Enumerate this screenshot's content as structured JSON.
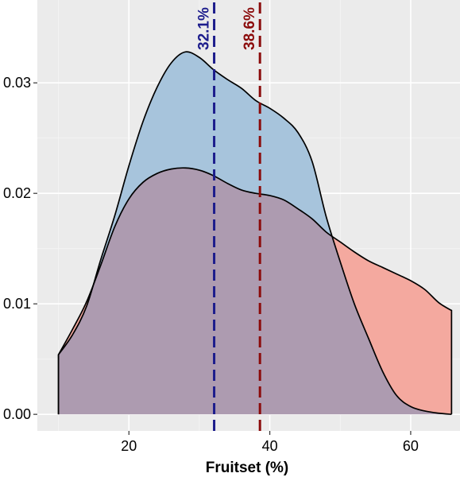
{
  "chart_data": {
    "type": "area",
    "title": "",
    "xlabel": "Fruitset (%)",
    "ylabel": "",
    "xlim": [
      7,
      67
    ],
    "ylim": [
      -0.0015,
      0.0375
    ],
    "x_ticks": [
      20,
      40,
      60
    ],
    "y_ticks": [
      0.0,
      0.01,
      0.02,
      0.03
    ],
    "x_tick_labels": [
      "20",
      "40",
      "60"
    ],
    "y_tick_labels": [
      "0.00",
      "0.01",
      "0.02",
      "0.03"
    ],
    "grid": true,
    "legend": "none",
    "series": [
      {
        "fill": "#f4a99f",
        "points": [
          [
            10,
            0.0054
          ],
          [
            12,
            0.0077
          ],
          [
            14,
            0.0102
          ],
          [
            16,
            0.0135
          ],
          [
            18,
            0.017
          ],
          [
            20,
            0.0195
          ],
          [
            22,
            0.021
          ],
          [
            24,
            0.0218
          ],
          [
            26,
            0.0222
          ],
          [
            28,
            0.0223
          ],
          [
            30,
            0.0221
          ],
          [
            32,
            0.0216
          ],
          [
            34,
            0.0209
          ],
          [
            36,
            0.0203
          ],
          [
            38,
            0.02
          ],
          [
            40,
            0.0198
          ],
          [
            42,
            0.0194
          ],
          [
            44,
            0.0186
          ],
          [
            46,
            0.0177
          ],
          [
            48,
            0.0165
          ],
          [
            50,
            0.0156
          ],
          [
            52,
            0.0147
          ],
          [
            54,
            0.0139
          ],
          [
            56,
            0.0133
          ],
          [
            58,
            0.0127
          ],
          [
            60,
            0.0121
          ],
          [
            62,
            0.0113
          ],
          [
            64,
            0.0101
          ],
          [
            65.8,
            0.0094
          ]
        ]
      },
      {
        "fill": "#a7c4dc",
        "points": [
          [
            10,
            0.0054
          ],
          [
            12,
            0.0072
          ],
          [
            14,
            0.0098
          ],
          [
            16,
            0.014
          ],
          [
            18,
            0.018
          ],
          [
            20,
            0.0225
          ],
          [
            22,
            0.0265
          ],
          [
            24,
            0.0296
          ],
          [
            26,
            0.0318
          ],
          [
            28,
            0.0328
          ],
          [
            30,
            0.0323
          ],
          [
            32,
            0.0312
          ],
          [
            34,
            0.0303
          ],
          [
            36,
            0.0295
          ],
          [
            38,
            0.0284
          ],
          [
            40,
            0.0277
          ],
          [
            42,
            0.0268
          ],
          [
            44,
            0.0255
          ],
          [
            46,
            0.0229
          ],
          [
            48,
            0.0179
          ],
          [
            50,
            0.0138
          ],
          [
            52,
            0.01
          ],
          [
            54,
            0.0069
          ],
          [
            56,
            0.0039
          ],
          [
            58,
            0.0017
          ],
          [
            60,
            0.0007
          ],
          [
            62,
            0.0003
          ],
          [
            64,
            0.0001
          ],
          [
            65.8,
            0.0
          ]
        ]
      }
    ],
    "reference_lines": [
      {
        "x": 32.1,
        "label": "32.1%",
        "color": "#1c1c8c"
      },
      {
        "x": 38.6,
        "label": "38.6%",
        "color": "#8b0c0c"
      }
    ],
    "colors": {
      "panel_background": "#ebebeb",
      "grid_major": "#ffffff",
      "grid_minor": "#f5f5f5",
      "overlap_fill": "#ad9bb0",
      "curve_stroke": "#000000",
      "axis_text": "#000000"
    }
  }
}
